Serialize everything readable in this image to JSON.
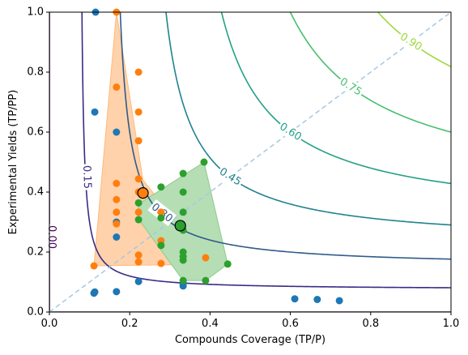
{
  "chart_data": {
    "type": "scatter",
    "title": "",
    "xlabel": "Compounds Coverage (TP/P)",
    "ylabel": "Experimental Yields (TP/PP)",
    "xlim": [
      0,
      1
    ],
    "ylim": [
      0,
      1
    ],
    "xticks": [
      "0.0",
      "0.2",
      "0.4",
      "0.6",
      "0.8",
      "1.0"
    ],
    "yticks": [
      "0.0",
      "0.2",
      "0.4",
      "0.6",
      "0.8",
      "1.0"
    ],
    "grid": false,
    "legend": "none",
    "diagonal": {
      "from": [
        0,
        0
      ],
      "to": [
        1,
        1
      ],
      "style": "dashed",
      "color": "#a6c8e3"
    },
    "contours": [
      {
        "level": 0.0,
        "label": "0.00",
        "color": "#440154",
        "label_at": [
          0.005,
          0.25
        ],
        "label_angle": 90
      },
      {
        "level": 0.15,
        "label": "0.15",
        "color": "#3b2a84",
        "label_at": [
          0.093,
          0.45
        ],
        "label_angle": 88
      },
      {
        "level": 0.3,
        "label": "0.30",
        "color": "#2f5b8a",
        "label_at": [
          0.28,
          0.33
        ],
        "label_angle": 38
      },
      {
        "level": 0.45,
        "label": "0.45",
        "color": "#21838d",
        "label_at": [
          0.45,
          0.45
        ],
        "label_angle": 32
      },
      {
        "level": 0.6,
        "label": "0.60",
        "color": "#22a186",
        "label_at": [
          0.6,
          0.6
        ],
        "label_angle": 32
      },
      {
        "level": 0.75,
        "label": "0.75",
        "color": "#47bf6e",
        "label_at": [
          0.75,
          0.75
        ],
        "label_angle": 32
      },
      {
        "level": 0.9,
        "label": "0.90",
        "color": "#9dd93b",
        "label_at": [
          0.9,
          0.9
        ],
        "label_angle": 32
      }
    ],
    "series": [
      {
        "color": "#1f77b4",
        "points": [
          [
            0.115,
            1.0
          ],
          [
            0.113,
            0.667
          ],
          [
            0.167,
            0.6
          ],
          [
            0.167,
            0.3
          ],
          [
            0.167,
            0.25
          ],
          [
            0.113,
            0.067
          ],
          [
            0.111,
            0.063
          ],
          [
            0.167,
            0.068
          ],
          [
            0.222,
            0.102
          ],
          [
            0.333,
            0.087
          ],
          [
            0.333,
            0.095
          ],
          [
            0.611,
            0.044
          ],
          [
            0.667,
            0.042
          ],
          [
            0.722,
            0.038
          ]
        ]
      },
      {
        "color": "#ff7f0e",
        "hull": [
          [
            0.167,
            1.0
          ],
          [
            0.111,
            0.154
          ],
          [
            0.333,
            0.158
          ],
          [
            0.389,
            0.181
          ],
          [
            0.233,
            0.44
          ]
        ],
        "centroid": [
          0.233,
          0.397
        ],
        "points": [
          [
            0.167,
            1.0
          ],
          [
            0.167,
            0.75
          ],
          [
            0.222,
            0.8
          ],
          [
            0.222,
            0.667
          ],
          [
            0.222,
            0.571
          ],
          [
            0.167,
            0.429
          ],
          [
            0.222,
            0.444
          ],
          [
            0.167,
            0.375
          ],
          [
            0.222,
            0.4
          ],
          [
            0.167,
            0.333
          ],
          [
            0.222,
            0.333
          ],
          [
            0.278,
            0.333
          ],
          [
            0.278,
            0.238
          ],
          [
            0.222,
            0.19
          ],
          [
            0.222,
            0.167
          ],
          [
            0.278,
            0.162
          ],
          [
            0.111,
            0.154
          ],
          [
            0.389,
            0.181
          ],
          [
            0.167,
            0.294
          ]
        ]
      },
      {
        "color": "#2ca02c",
        "hull": [
          [
            0.385,
            0.5
          ],
          [
            0.444,
            0.16
          ],
          [
            0.389,
            0.105
          ],
          [
            0.333,
            0.105
          ],
          [
            0.222,
            0.31
          ],
          [
            0.222,
            0.36
          ]
        ],
        "centroid": [
          0.326,
          0.288
        ],
        "points": [
          [
            0.385,
            0.5
          ],
          [
            0.333,
            0.462
          ],
          [
            0.278,
            0.417
          ],
          [
            0.333,
            0.4
          ],
          [
            0.222,
            0.364
          ],
          [
            0.278,
            0.314
          ],
          [
            0.222,
            0.308
          ],
          [
            0.333,
            0.333
          ],
          [
            0.333,
            0.273
          ],
          [
            0.278,
            0.222
          ],
          [
            0.333,
            0.2
          ],
          [
            0.333,
            0.185
          ],
          [
            0.333,
            0.173
          ],
          [
            0.333,
            0.105
          ],
          [
            0.389,
            0.105
          ],
          [
            0.444,
            0.16
          ]
        ]
      }
    ]
  }
}
